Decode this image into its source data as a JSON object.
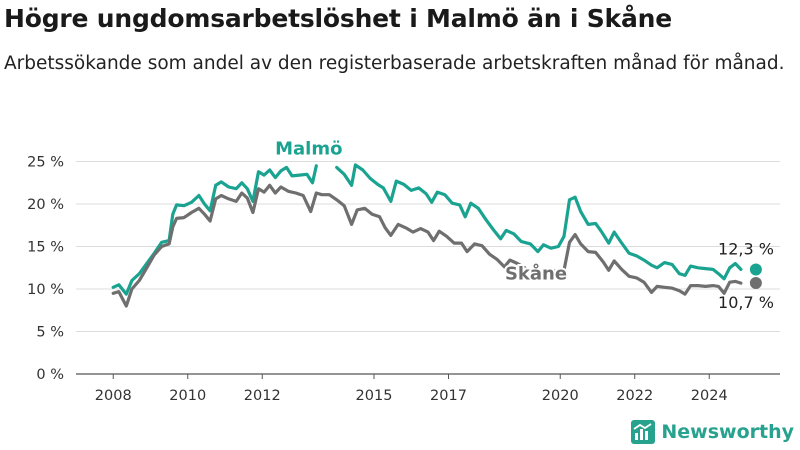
{
  "header": {
    "title": "Högre ungdomsarbetslöshet i Malmö än i Skåne",
    "subtitle": "Arbetssökande som andel av den registerbaserade arbetskraften månad för månad."
  },
  "brand": {
    "name": "Newsworthy",
    "icon": "newsworthy-logo-icon"
  },
  "chart_data": {
    "type": "line",
    "y_ticks": [
      "0 %",
      "5 %",
      "10 %",
      "15 %",
      "20 %",
      "25 %"
    ],
    "y_tick_values": [
      0,
      5,
      10,
      15,
      20,
      25
    ],
    "x_ticks": [
      "2008",
      "2010",
      "2012",
      "2015",
      "2017",
      "2020",
      "2022",
      "2024"
    ],
    "x_tick_values": [
      2008,
      2010,
      2012,
      2015,
      2017,
      2020,
      2022,
      2024
    ],
    "ylim": [
      0,
      26
    ],
    "xlim": [
      2007.0,
      2025.9
    ],
    "grid": true,
    "series": [
      {
        "name": "Malmö",
        "color": "#1aa391",
        "end_label": "12,3 %",
        "end_value": 12.3,
        "points": [
          [
            2008.0,
            10.2
          ],
          [
            2008.15,
            10.5
          ],
          [
            2008.35,
            9.4
          ],
          [
            2008.5,
            11.0
          ],
          [
            2008.7,
            11.8
          ],
          [
            2008.9,
            13.0
          ],
          [
            2009.1,
            14.2
          ],
          [
            2009.3,
            15.5
          ],
          [
            2009.5,
            15.7
          ],
          [
            2009.6,
            18.8
          ],
          [
            2009.7,
            19.9
          ],
          [
            2009.9,
            19.8
          ],
          [
            2010.1,
            20.2
          ],
          [
            2010.3,
            21.0
          ],
          [
            2010.45,
            20.0
          ],
          [
            2010.6,
            19.2
          ],
          [
            2010.75,
            22.2
          ],
          [
            2010.9,
            22.6
          ],
          [
            2011.1,
            22.0
          ],
          [
            2011.3,
            21.8
          ],
          [
            2011.45,
            22.5
          ],
          [
            2011.6,
            21.8
          ],
          [
            2011.75,
            20.3
          ],
          [
            2011.9,
            23.8
          ],
          [
            2012.05,
            23.4
          ],
          [
            2012.2,
            24.0
          ],
          [
            2012.35,
            23.1
          ],
          [
            2012.5,
            23.9
          ],
          [
            2012.65,
            24.3
          ],
          [
            2012.8,
            23.3
          ],
          [
            2013.0,
            23.4
          ],
          [
            2013.2,
            23.5
          ],
          [
            2013.35,
            22.5
          ],
          [
            2013.45,
            24.5
          ]
        ],
        "points_2": [
          [
            2014.0,
            24.3
          ],
          [
            2014.2,
            23.5
          ],
          [
            2014.4,
            22.2
          ],
          [
            2014.5,
            24.6
          ],
          [
            2014.7,
            24.0
          ],
          [
            2014.9,
            23.0
          ],
          [
            2015.1,
            22.3
          ],
          [
            2015.25,
            21.9
          ],
          [
            2015.45,
            20.3
          ],
          [
            2015.6,
            22.7
          ],
          [
            2015.8,
            22.3
          ],
          [
            2016.0,
            21.6
          ],
          [
            2016.2,
            21.9
          ],
          [
            2016.4,
            21.2
          ],
          [
            2016.55,
            20.2
          ],
          [
            2016.7,
            21.4
          ],
          [
            2016.9,
            21.1
          ],
          [
            2017.1,
            20.1
          ],
          [
            2017.3,
            19.9
          ],
          [
            2017.45,
            18.5
          ],
          [
            2017.6,
            20.1
          ],
          [
            2017.8,
            19.5
          ],
          [
            2018.0,
            18.2
          ],
          [
            2018.2,
            17.0
          ],
          [
            2018.4,
            15.9
          ],
          [
            2018.55,
            16.9
          ],
          [
            2018.75,
            16.5
          ],
          [
            2018.95,
            15.6
          ],
          [
            2019.2,
            15.3
          ],
          [
            2019.4,
            14.4
          ],
          [
            2019.55,
            15.2
          ],
          [
            2019.75,
            14.8
          ],
          [
            2019.95,
            15.0
          ],
          [
            2020.1,
            16.2
          ],
          [
            2020.25,
            20.5
          ],
          [
            2020.4,
            20.8
          ],
          [
            2020.55,
            19.1
          ],
          [
            2020.75,
            17.6
          ],
          [
            2020.95,
            17.7
          ],
          [
            2021.1,
            16.8
          ],
          [
            2021.3,
            15.4
          ],
          [
            2021.45,
            16.7
          ],
          [
            2021.65,
            15.4
          ],
          [
            2021.85,
            14.2
          ],
          [
            2022.05,
            13.9
          ],
          [
            2022.25,
            13.4
          ],
          [
            2022.45,
            12.8
          ],
          [
            2022.6,
            12.5
          ],
          [
            2022.8,
            13.1
          ],
          [
            2023.0,
            12.9
          ],
          [
            2023.2,
            11.8
          ],
          [
            2023.35,
            11.6
          ],
          [
            2023.5,
            12.7
          ],
          [
            2023.7,
            12.5
          ],
          [
            2023.9,
            12.4
          ],
          [
            2024.1,
            12.3
          ],
          [
            2024.25,
            11.8
          ],
          [
            2024.4,
            11.2
          ],
          [
            2024.55,
            12.5
          ],
          [
            2024.7,
            13.0
          ],
          [
            2024.85,
            12.3
          ]
        ]
      },
      {
        "name": "Skåne",
        "color": "#6f6f6f",
        "end_label": "10,7 %",
        "end_value": 10.7,
        "points": [
          [
            2008.0,
            9.5
          ],
          [
            2008.15,
            9.7
          ],
          [
            2008.35,
            8.0
          ],
          [
            2008.5,
            10.0
          ],
          [
            2008.7,
            11.0
          ],
          [
            2008.9,
            12.5
          ],
          [
            2009.1,
            14.0
          ],
          [
            2009.3,
            15.0
          ],
          [
            2009.5,
            15.3
          ],
          [
            2009.6,
            17.3
          ],
          [
            2009.7,
            18.3
          ],
          [
            2009.9,
            18.4
          ],
          [
            2010.1,
            19.0
          ],
          [
            2010.3,
            19.5
          ],
          [
            2010.45,
            18.8
          ],
          [
            2010.6,
            18.0
          ],
          [
            2010.75,
            20.6
          ],
          [
            2010.9,
            21.0
          ],
          [
            2011.1,
            20.6
          ],
          [
            2011.3,
            20.3
          ],
          [
            2011.45,
            21.3
          ],
          [
            2011.6,
            20.7
          ],
          [
            2011.75,
            19.0
          ],
          [
            2011.9,
            21.8
          ],
          [
            2012.05,
            21.4
          ],
          [
            2012.2,
            22.2
          ],
          [
            2012.35,
            21.3
          ],
          [
            2012.5,
            22.0
          ],
          [
            2012.7,
            21.5
          ],
          [
            2012.9,
            21.3
          ],
          [
            2013.1,
            21.0
          ],
          [
            2013.3,
            19.1
          ],
          [
            2013.45,
            21.3
          ],
          [
            2013.6,
            21.1
          ],
          [
            2013.8,
            21.1
          ],
          [
            2014.0,
            20.5
          ],
          [
            2014.2,
            19.8
          ],
          [
            2014.4,
            17.6
          ],
          [
            2014.55,
            19.3
          ],
          [
            2014.75,
            19.5
          ],
          [
            2014.95,
            18.8
          ],
          [
            2015.15,
            18.5
          ],
          [
            2015.3,
            17.2
          ],
          [
            2015.45,
            16.3
          ],
          [
            2015.65,
            17.6
          ],
          [
            2015.85,
            17.2
          ],
          [
            2016.05,
            16.7
          ],
          [
            2016.25,
            17.1
          ],
          [
            2016.45,
            16.7
          ],
          [
            2016.6,
            15.7
          ],
          [
            2016.75,
            16.8
          ],
          [
            2016.95,
            16.2
          ],
          [
            2017.15,
            15.4
          ],
          [
            2017.35,
            15.4
          ],
          [
            2017.5,
            14.4
          ],
          [
            2017.7,
            15.3
          ],
          [
            2017.9,
            15.1
          ],
          [
            2018.1,
            14.1
          ],
          [
            2018.3,
            13.5
          ],
          [
            2018.5,
            12.6
          ],
          [
            2018.65,
            13.4
          ],
          [
            2018.85,
            13.0
          ],
          [
            2019.05,
            12.5
          ]
        ],
        "points_2": [
          [
            2019.75,
            12.3
          ],
          [
            2019.95,
            11.9
          ],
          [
            2020.1,
            12.2
          ],
          [
            2020.25,
            15.5
          ],
          [
            2020.4,
            16.4
          ],
          [
            2020.55,
            15.3
          ],
          [
            2020.75,
            14.4
          ],
          [
            2020.95,
            14.3
          ],
          [
            2021.15,
            13.2
          ],
          [
            2021.3,
            12.2
          ],
          [
            2021.45,
            13.3
          ],
          [
            2021.65,
            12.3
          ],
          [
            2021.85,
            11.5
          ],
          [
            2022.05,
            11.3
          ],
          [
            2022.25,
            10.8
          ],
          [
            2022.45,
            9.6
          ],
          [
            2022.6,
            10.3
          ],
          [
            2022.8,
            10.2
          ],
          [
            2023.0,
            10.1
          ],
          [
            2023.2,
            9.8
          ],
          [
            2023.35,
            9.4
          ],
          [
            2023.5,
            10.4
          ],
          [
            2023.7,
            10.4
          ],
          [
            2023.9,
            10.3
          ],
          [
            2024.1,
            10.4
          ],
          [
            2024.25,
            10.3
          ],
          [
            2024.4,
            9.5
          ],
          [
            2024.55,
            10.8
          ],
          [
            2024.7,
            10.9
          ],
          [
            2024.85,
            10.7
          ]
        ]
      }
    ]
  }
}
